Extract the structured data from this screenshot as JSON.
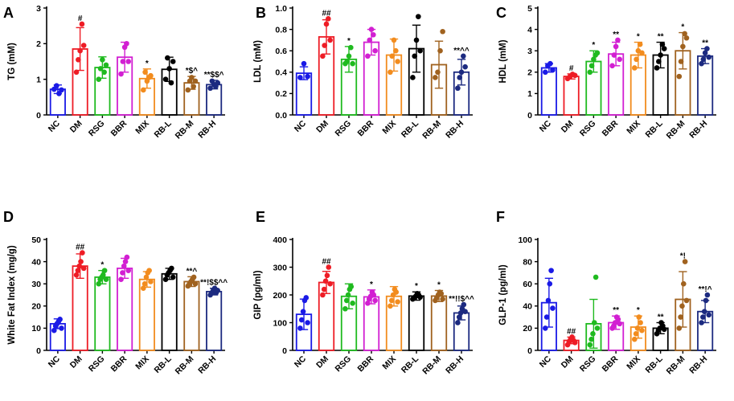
{
  "chart_data": [
    {
      "type": "bar",
      "panel": "A",
      "title": "",
      "xlabel": "",
      "ylabel": "TG (mM)",
      "ylim": [
        0,
        3
      ],
      "yticks": [
        0,
        1,
        2,
        3
      ],
      "ytick_labels": [
        "0",
        "1",
        "2",
        "3"
      ],
      "categories": [
        "NC",
        "DM",
        "RSG",
        "BBR",
        "MIX",
        "RB-L",
        "RB-M",
        "RB-H"
      ],
      "colors": [
        "#1a1ae6",
        "#ee1c25",
        "#1fba1f",
        "#d21fd2",
        "#f28c1e",
        "#000000",
        "#a0621f",
        "#1c2a80"
      ],
      "values": [
        0.72,
        1.85,
        1.33,
        1.62,
        1.02,
        1.28,
        0.9,
        0.85
      ],
      "errors": [
        0.12,
        0.6,
        0.3,
        0.42,
        0.27,
        0.34,
        0.18,
        0.12
      ],
      "points": [
        [
          0.72,
          0.82,
          0.6,
          0.7
        ],
        [
          1.2,
          1.55,
          1.8,
          2.55,
          1.95
        ],
        [
          1.0,
          1.3,
          1.55,
          1.2,
          1.4
        ],
        [
          1.15,
          1.5,
          1.9,
          2.0,
          1.5
        ],
        [
          0.7,
          1.2,
          0.95,
          1.05,
          1.1
        ],
        [
          1.0,
          1.6,
          1.3,
          0.9,
          1.5
        ],
        [
          0.7,
          0.95,
          1.05,
          0.8,
          0.95
        ],
        [
          0.75,
          0.95,
          0.85,
          0.8,
          0.9
        ]
      ],
      "significance": [
        "",
        "#",
        "",
        "",
        "*",
        "",
        "*$^",
        "**$$^"
      ]
    },
    {
      "type": "bar",
      "panel": "B",
      "title": "",
      "xlabel": "",
      "ylabel": "LDL (mM)",
      "ylim": [
        0,
        1.0
      ],
      "yticks": [
        0,
        0.2,
        0.4,
        0.6,
        0.8,
        1.0
      ],
      "ytick_labels": [
        "0.0",
        "0.2",
        "0.4",
        "0.6",
        "0.8",
        "1.0"
      ],
      "categories": [
        "NC",
        "DM",
        "RSG",
        "BBR",
        "MIX",
        "RB-L",
        "RB-M",
        "RB-H"
      ],
      "colors": [
        "#1a1ae6",
        "#ee1c25",
        "#1fba1f",
        "#d21fd2",
        "#f28c1e",
        "#000000",
        "#a0621f",
        "#1c2a80"
      ],
      "values": [
        0.39,
        0.73,
        0.52,
        0.68,
        0.56,
        0.62,
        0.47,
        0.4
      ],
      "errors": [
        0.06,
        0.16,
        0.12,
        0.12,
        0.15,
        0.22,
        0.22,
        0.12
      ],
      "points": [
        [
          0.35,
          0.48,
          0.36
        ],
        [
          0.55,
          0.65,
          0.85,
          0.9,
          0.7
        ],
        [
          0.48,
          0.5,
          0.55,
          0.63,
          0.48
        ],
        [
          0.55,
          0.7,
          0.8,
          0.75,
          0.6
        ],
        [
          0.4,
          0.55,
          0.7,
          0.6,
          0.5
        ],
        [
          0.35,
          0.55,
          0.7,
          0.92,
          0.6
        ],
        [
          0.35,
          0.4,
          0.6,
          0.78
        ],
        [
          0.25,
          0.35,
          0.4,
          0.55,
          0.45
        ]
      ],
      "significance": [
        "",
        "##",
        "*",
        "",
        "",
        "",
        "",
        "**^^"
      ]
    },
    {
      "type": "bar",
      "panel": "C",
      "title": "",
      "xlabel": "",
      "ylabel": "HDL (mM)",
      "ylim": [
        0,
        5
      ],
      "yticks": [
        0,
        1,
        2,
        3,
        4,
        5
      ],
      "ytick_labels": [
        "0",
        "1",
        "2",
        "3",
        "4",
        "5"
      ],
      "categories": [
        "NC",
        "DM",
        "RSG",
        "BBR",
        "MIX",
        "RB-L",
        "RB-M",
        "RB-H"
      ],
      "colors": [
        "#1a1ae6",
        "#ee1c25",
        "#1fba1f",
        "#d21fd2",
        "#f28c1e",
        "#000000",
        "#a0621f",
        "#1c2a80"
      ],
      "values": [
        2.2,
        1.8,
        2.5,
        2.85,
        2.8,
        2.8,
        3.0,
        2.75
      ],
      "errors": [
        0.2,
        0.12,
        0.5,
        0.55,
        0.6,
        0.6,
        0.85,
        0.35
      ],
      "points": [
        [
          2.0,
          2.3,
          2.4,
          2.1
        ],
        [
          1.7,
          1.8,
          1.9,
          1.85
        ],
        [
          2.0,
          2.3,
          2.6,
          2.8,
          2.9
        ],
        [
          2.3,
          2.8,
          3.2,
          3.5,
          2.6
        ],
        [
          2.2,
          2.6,
          3.0,
          3.3,
          2.9
        ],
        [
          2.2,
          2.5,
          2.8,
          3.3,
          3.1
        ],
        [
          1.8,
          2.5,
          3.2,
          3.8,
          3.6
        ],
        [
          2.4,
          2.6,
          2.9,
          3.1,
          2.7
        ]
      ],
      "significance": [
        "",
        "#",
        "*",
        "**",
        "*",
        "**",
        "*",
        "**"
      ]
    },
    {
      "type": "bar",
      "panel": "D",
      "title": "",
      "xlabel": "",
      "ylabel": "White Fat Index (mg/g)",
      "ylim": [
        0,
        50
      ],
      "yticks": [
        0,
        10,
        20,
        30,
        40,
        50
      ],
      "ytick_labels": [
        "0",
        "10",
        "20",
        "30",
        "40",
        "50"
      ],
      "categories": [
        "NC",
        "DM",
        "RSG",
        "BBR",
        "MIX",
        "RB-L",
        "RB-M",
        "RB-H"
      ],
      "colors": [
        "#1a1ae6",
        "#ee1c25",
        "#1fba1f",
        "#d21fd2",
        "#f28c1e",
        "#000000",
        "#a0621f",
        "#1c2a80"
      ],
      "values": [
        12,
        38,
        33,
        37,
        32,
        34.5,
        31,
        26.5
      ],
      "errors": [
        2.2,
        5.5,
        3,
        4.5,
        3.5,
        2.5,
        2.2,
        1.5
      ],
      "points": [
        [
          9,
          11,
          12,
          13,
          14,
          10
        ],
        [
          34,
          36,
          38,
          40,
          44,
          37
        ],
        [
          30,
          32,
          33,
          34,
          36,
          32
        ],
        [
          32,
          35,
          38,
          40,
          42,
          36
        ],
        [
          28,
          30,
          33,
          35,
          36,
          31
        ],
        [
          32,
          34,
          35,
          36,
          37,
          33
        ],
        [
          29,
          30,
          31,
          32,
          33,
          30
        ],
        [
          25,
          26,
          27,
          28,
          26,
          27
        ]
      ],
      "significance": [
        "",
        "##",
        "*",
        "",
        "",
        "",
        "**^",
        "**!$$^^"
      ]
    },
    {
      "type": "bar",
      "panel": "E",
      "title": "",
      "xlabel": "",
      "ylabel": "GIP (pg/ml)",
      "ylim": [
        0,
        400
      ],
      "yticks": [
        0,
        100,
        200,
        300,
        400
      ],
      "ytick_labels": [
        "0",
        "100",
        "200",
        "300",
        "400"
      ],
      "categories": [
        "NC",
        "DM",
        "RSG",
        "BBR",
        "MIX",
        "RB-L",
        "RB-M",
        "RB-H"
      ],
      "colors": [
        "#1a1ae6",
        "#ee1c25",
        "#1fba1f",
        "#d21fd2",
        "#f28c1e",
        "#000000",
        "#a0621f",
        "#1c2a80"
      ],
      "values": [
        130,
        245,
        195,
        193,
        195,
        196,
        196,
        135
      ],
      "errors": [
        55,
        40,
        45,
        25,
        35,
        15,
        20,
        25
      ],
      "points": [
        [
          80,
          110,
          140,
          180,
          190,
          100
        ],
        [
          200,
          220,
          250,
          270,
          300,
          240
        ],
        [
          150,
          180,
          200,
          220,
          230,
          170
        ],
        [
          170,
          185,
          195,
          210,
          200,
          180
        ],
        [
          160,
          180,
          200,
          220,
          210,
          175
        ],
        [
          185,
          190,
          195,
          205,
          200,
          192
        ],
        [
          180,
          190,
          200,
          210,
          205,
          185
        ],
        [
          100,
          120,
          135,
          150,
          165,
          140
        ]
      ],
      "significance": [
        "",
        "##",
        "",
        "*",
        "",
        "*",
        "*",
        "**!!$^^"
      ]
    },
    {
      "type": "bar",
      "panel": "F",
      "title": "",
      "xlabel": "",
      "ylabel": "GLP-1 (pg/ml)",
      "ylim": [
        0,
        100
      ],
      "yticks": [
        0,
        20,
        40,
        60,
        80,
        100
      ],
      "ytick_labels": [
        "0",
        "20",
        "40",
        "60",
        "80",
        "100"
      ],
      "categories": [
        "NC",
        "DM",
        "RSG",
        "BBR",
        "MIX",
        "RB-L",
        "RB-M",
        "RB-H"
      ],
      "colors": [
        "#1a1ae6",
        "#ee1c25",
        "#1fba1f",
        "#d21fd2",
        "#f28c1e",
        "#000000",
        "#a0621f",
        "#1c2a80"
      ],
      "values": [
        43,
        9,
        24,
        25,
        21,
        20,
        46,
        35
      ],
      "errors": [
        22,
        3,
        22,
        6,
        10,
        5,
        25,
        10
      ],
      "points": [
        [
          20,
          30,
          45,
          60,
          72,
          38
        ],
        [
          5,
          8,
          10,
          12,
          9,
          7
        ],
        [
          5,
          10,
          15,
          25,
          66,
          20
        ],
        [
          20,
          22,
          25,
          30,
          28,
          24
        ],
        [
          10,
          15,
          20,
          30,
          25,
          18
        ],
        [
          15,
          18,
          20,
          25,
          22,
          19
        ],
        [
          20,
          30,
          40,
          60,
          80,
          45
        ],
        [
          25,
          30,
          35,
          45,
          50,
          32
        ]
      ],
      "significance": [
        "",
        "##",
        "",
        "**",
        "*",
        "**",
        "*!",
        "**!^"
      ]
    }
  ]
}
